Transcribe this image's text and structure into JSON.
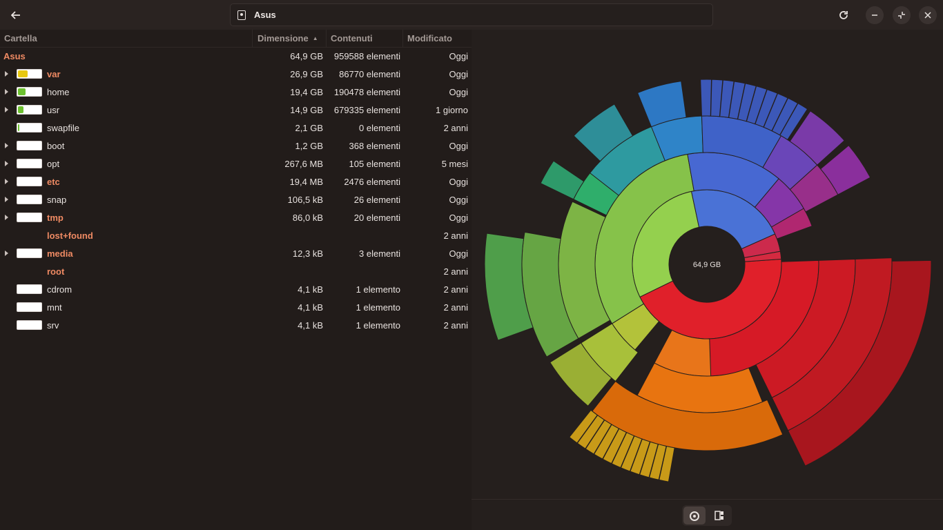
{
  "header": {
    "location_label": "Asus",
    "icons": {
      "back": "arrow-left-icon",
      "reload": "reload-icon",
      "minimize": "minimize-icon",
      "restore": "restore-icon",
      "close": "close-icon",
      "disk": "drive-icon"
    }
  },
  "columns": {
    "name": "Cartella",
    "size": "Dimensione",
    "contents": "Contenuti",
    "modified": "Modificato"
  },
  "root_row": {
    "name": "Asus",
    "size": "64,9 GB",
    "contents": "959588 elementi",
    "modified": "Oggi"
  },
  "rows": [
    {
      "name": "var",
      "size": "26,9 GB",
      "contents": "86770 elementi",
      "modified": "Oggi",
      "bold": true,
      "expandable": true,
      "fill": 0.41,
      "fill_color": "#e8c80f"
    },
    {
      "name": "home",
      "size": "19,4 GB",
      "contents": "190478 elementi",
      "modified": "Oggi",
      "bold": false,
      "expandable": true,
      "fill": 0.3,
      "fill_color": "#6cc02f"
    },
    {
      "name": "usr",
      "size": "14,9 GB",
      "contents": "679335 elementi",
      "modified": "1 giorno",
      "bold": false,
      "expandable": true,
      "fill": 0.23,
      "fill_color": "#6cc02f"
    },
    {
      "name": "swapfile",
      "size": "2,1 GB",
      "contents": "0 elementi",
      "modified": "2 anni",
      "bold": false,
      "expandable": false,
      "fill": 0.03,
      "fill_color": "#6cc02f"
    },
    {
      "name": "boot",
      "size": "1,2 GB",
      "contents": "368 elementi",
      "modified": "Oggi",
      "bold": false,
      "expandable": true,
      "fill": 0,
      "fill_color": "#6cc02f"
    },
    {
      "name": "opt",
      "size": "267,6 MB",
      "contents": "105 elementi",
      "modified": "5 mesi",
      "bold": false,
      "expandable": true,
      "fill": 0,
      "fill_color": "#6cc02f"
    },
    {
      "name": "etc",
      "size": "19,4 MB",
      "contents": "2476 elementi",
      "modified": "Oggi",
      "bold": true,
      "expandable": true,
      "fill": 0,
      "fill_color": "#6cc02f"
    },
    {
      "name": "snap",
      "size": "106,5 kB",
      "contents": "26 elementi",
      "modified": "Oggi",
      "bold": false,
      "expandable": true,
      "fill": 0,
      "fill_color": "#6cc02f"
    },
    {
      "name": "tmp",
      "size": "86,0 kB",
      "contents": "20 elementi",
      "modified": "Oggi",
      "bold": true,
      "expandable": true,
      "fill": 0,
      "fill_color": "#6cc02f"
    },
    {
      "name": "lost+found",
      "size": "",
      "contents": "",
      "modified": "2 anni",
      "bold": true,
      "expandable": false,
      "nobar": true
    },
    {
      "name": "media",
      "size": "12,3 kB",
      "contents": "3 elementi",
      "modified": "Oggi",
      "bold": true,
      "expandable": true,
      "fill": 0,
      "fill_color": "#6cc02f"
    },
    {
      "name": "root",
      "size": "",
      "contents": "",
      "modified": "2 anni",
      "bold": true,
      "expandable": false,
      "nobar": true
    },
    {
      "name": "cdrom",
      "size": "4,1 kB",
      "contents": "1 elemento",
      "modified": "2 anni",
      "bold": false,
      "expandable": false,
      "fill": 0,
      "fill_color": "#6cc02f"
    },
    {
      "name": "mnt",
      "size": "4,1 kB",
      "contents": "1 elemento",
      "modified": "2 anni",
      "bold": false,
      "expandable": false,
      "fill": 0,
      "fill_color": "#6cc02f"
    },
    {
      "name": "srv",
      "size": "4,1 kB",
      "contents": "1 elemento",
      "modified": "2 anni",
      "bold": false,
      "expandable": false,
      "fill": 0,
      "fill_color": "#6cc02f"
    }
  ],
  "ring_chart": {
    "center_label": "64,9 GB",
    "colors": {
      "var": "#e01b24",
      "home": "#e66100",
      "usr": "#8fc74f",
      "other_blue": "#3d6fd6",
      "purple": "#8a3fa8",
      "magenta": "#c0286a"
    }
  },
  "view_switcher": {
    "ring_icon": "ring-chart-icon",
    "treemap_icon": "treemap-icon"
  }
}
